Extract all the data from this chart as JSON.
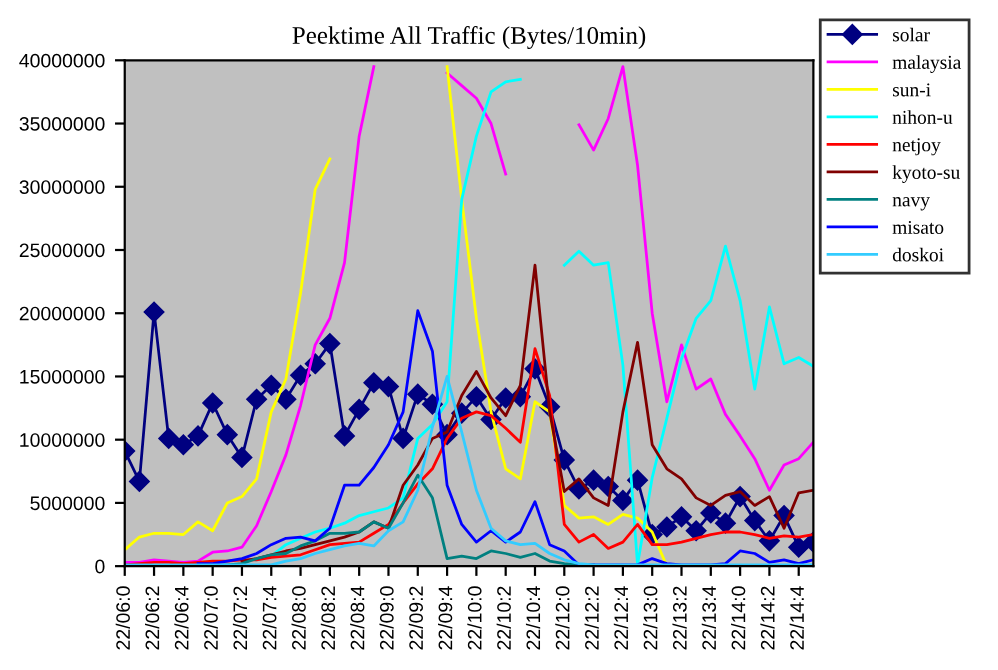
{
  "chart_data": {
    "type": "line",
    "title": "Peektime All Traffic (Bytes/10min)",
    "categories": [
      "22/06:0",
      null,
      "22/06:2",
      null,
      "22/06:4",
      null,
      "22/07:0",
      null,
      "22/07:2",
      null,
      "22/07:4",
      null,
      "22/08:0",
      null,
      "22/08:2",
      null,
      "22/08:4",
      null,
      "22/09:0",
      null,
      "22/09:2",
      null,
      "22/09:4",
      null,
      "22/10:0",
      null,
      "22/10:2",
      null,
      "22/10:4",
      null,
      "22/12:0",
      null,
      "22/12:2",
      null,
      "22/12:4",
      null,
      "22/13:0",
      null,
      "22/13:2",
      null,
      "22/13:4",
      null,
      "22/14:0",
      null,
      "22/14:2",
      null,
      "22/14:4",
      null
    ],
    "ylim": [
      0,
      40000000
    ],
    "yticks": [
      0,
      5000000,
      10000000,
      15000000,
      20000000,
      25000000,
      30000000,
      35000000,
      40000000
    ],
    "grid": false,
    "legend": "top right",
    "line_style": "solid",
    "series": [
      {
        "name": "solar",
        "color": "#000080",
        "marker": "diamond",
        "values": [
          9100000.0,
          6700000.0,
          20100000.0,
          10100000.0,
          9600000.0,
          10300000.0,
          12900000.0,
          10400000.0,
          8600000.0,
          13200000.0,
          14300000.0,
          13200000.0,
          15100000.0,
          16000000.0,
          17600000.0,
          10300000.0,
          12400000.0,
          14500000.0,
          14200000.0,
          10100000.0,
          13600000.0,
          12800000.0,
          10400000.0,
          12100000.0,
          13400000.0,
          11600000.0,
          13300000.0,
          13400000.0,
          15600000.0,
          12600000.0,
          8400000.0,
          6100000.0,
          6800000.0,
          6300000.0,
          5200000.0,
          6800000.0,
          2500000.0,
          3100000.0,
          3900000.0,
          2800000.0,
          4200000.0,
          3400000.0,
          5500000.0,
          3600000.0,
          2000000.0,
          4000000.0,
          1500000.0,
          1900000.0
        ]
      },
      {
        "name": "malaysia",
        "color": "#ff00ff",
        "values": [
          300000.0,
          300000.0,
          500000.0,
          400000.0,
          300000.0,
          400000.0,
          1100000.0,
          1200000.0,
          1500000.0,
          3200000.0,
          5900000.0,
          8800000.0,
          12700000.0,
          17500000.0,
          19600000.0,
          24000000.0,
          34000000.0,
          39500000.0,
          null,
          null,
          null,
          null,
          39000000.0,
          38000000.0,
          37000000.0,
          35000000.0,
          31000000.0,
          null,
          null,
          null,
          null,
          34900000.0,
          32900000.0,
          35400000.0,
          39500000.0,
          31700000.0,
          20000000.0,
          13000000.0,
          17500000.0,
          14000000.0,
          14800000.0,
          12000000.0,
          10300000.0,
          8500000.0,
          6000000.0,
          8000000.0,
          8500000.0,
          9800000.0
        ]
      },
      {
        "name": "sun-i",
        "color": "#ffff00",
        "values": [
          1300000.0,
          2300000.0,
          2600000.0,
          2600000.0,
          2500000.0,
          3500000.0,
          2800000.0,
          5000000.0,
          5500000.0,
          6900000.0,
          12200000.0,
          14800000.0,
          21600000.0,
          29800000.0,
          32200000.0,
          null,
          null,
          null,
          null,
          null,
          null,
          null,
          39500000.0,
          29000000.0,
          19600000.0,
          12200000.0,
          7700000.0,
          6900000.0,
          13000000.0,
          12200000.0,
          4800000.0,
          3800000.0,
          3900000.0,
          3300000.0,
          4100000.0,
          3800000.0,
          2700000.0,
          0,
          0,
          null,
          null,
          null,
          null,
          null,
          null,
          null,
          null,
          null
        ]
      },
      {
        "name": "nihon-u",
        "color": "#00ffff",
        "values": [
          null,
          null,
          null,
          null,
          null,
          null,
          null,
          null,
          null,
          500000.0,
          800000.0,
          1700000.0,
          2200000.0,
          2700000.0,
          3000000.0,
          3400000.0,
          4000000.0,
          4300000.0,
          4600000.0,
          5400000.0,
          10100000.0,
          11200000.0,
          13000000.0,
          29000000.0,
          34000000.0,
          37500000.0,
          38300000.0,
          38500000.0,
          null,
          null,
          23800000.0,
          24900000.0,
          23800000.0,
          24000000.0,
          15900000.0,
          100000.0,
          7000000.0,
          11700000.0,
          16400000.0,
          19600000.0,
          21000000.0,
          25300000.0,
          21000000.0,
          14000000.0,
          20500000.0,
          16000000.0,
          16500000.0,
          15800000.0
        ]
      },
      {
        "name": "netjoy",
        "color": "#ff0000",
        "values": [
          100000.0,
          200000.0,
          300000.0,
          300000.0,
          200000.0,
          300000.0,
          400000.0,
          400000.0,
          500000.0,
          500000.0,
          700000.0,
          800000.0,
          900000.0,
          1300000.0,
          1700000.0,
          1800000.0,
          1900000.0,
          2600000.0,
          3300000.0,
          5000000.0,
          6500000.0,
          7700000.0,
          10100000.0,
          11700000.0,
          12200000.0,
          11900000.0,
          10900000.0,
          9800000.0,
          17200000.0,
          13500000.0,
          3300000.0,
          1900000.0,
          2500000.0,
          1400000.0,
          1900000.0,
          3300000.0,
          1700000.0,
          1700000.0,
          1900000.0,
          2200000.0,
          2500000.0,
          2700000.0,
          2700000.0,
          2500000.0,
          2200000.0,
          2400000.0,
          2300000.0,
          2500000.0
        ]
      },
      {
        "name": "kyoto-su",
        "color": "#800000",
        "values": [
          null,
          null,
          null,
          null,
          null,
          null,
          null,
          null,
          400000.0,
          600000.0,
          900000.0,
          1200000.0,
          1400000.0,
          1700000.0,
          2000000.0,
          2300000.0,
          2700000.0,
          3500000.0,
          3000000.0,
          6400000.0,
          8000000.0,
          10100000.0,
          10600000.0,
          13500000.0,
          15400000.0,
          13300000.0,
          11900000.0,
          14300000.0,
          23800000.0,
          12200000.0,
          5900000.0,
          6900000.0,
          5400000.0,
          4800000.0,
          12200000.0,
          17700000.0,
          9600000.0,
          7700000.0,
          6900000.0,
          5400000.0,
          4800000.0,
          5600000.0,
          5900000.0,
          4800000.0,
          5500000.0,
          3000000.0,
          5800000.0,
          6000000.0
        ]
      },
      {
        "name": "navy",
        "color": "#008080",
        "values": [
          null,
          null,
          null,
          null,
          null,
          null,
          100000.0,
          100000.0,
          200000.0,
          600000.0,
          900000.0,
          1000000.0,
          1600000.0,
          2000000.0,
          2600000.0,
          2600000.0,
          2700000.0,
          3500000.0,
          3000000.0,
          5000000.0,
          7200000.0,
          5400000.0,
          600000.0,
          800000.0,
          600000.0,
          1200000.0,
          1000000.0,
          700000.0,
          1000000.0,
          400000.0,
          200000.0,
          100000.0,
          100000.0,
          null,
          null,
          null,
          null,
          null,
          null,
          null,
          null,
          null,
          null,
          null,
          null,
          null,
          null,
          null
        ]
      },
      {
        "name": "misato",
        "color": "#0000ff",
        "values": [
          null,
          null,
          null,
          null,
          null,
          200000.0,
          200000.0,
          400000.0,
          600000.0,
          1000000.0,
          1700000.0,
          2200000.0,
          2300000.0,
          2000000.0,
          3000000.0,
          6400000.0,
          6400000.0,
          7800000.0,
          9600000.0,
          12200000.0,
          20200000.0,
          17000000.0,
          6400000.0,
          3300000.0,
          1900000.0,
          2800000.0,
          1900000.0,
          2700000.0,
          5100000.0,
          1700000.0,
          1200000.0,
          100000.0,
          100000.0,
          100000.0,
          100000.0,
          100000.0,
          600000.0,
          200000.0,
          100000.0,
          100000.0,
          100000.0,
          200000.0,
          1200000.0,
          1000000.0,
          300000.0,
          500000.0,
          200000.0,
          500000.0
        ]
      },
      {
        "name": "doskoi",
        "color": "#33ccff",
        "values": [
          100000.0,
          100000.0,
          100000.0,
          100000.0,
          100000.0,
          100000.0,
          100000.0,
          100000.0,
          100000.0,
          100000.0,
          100000.0,
          400000.0,
          600000.0,
          1000000.0,
          1300000.0,
          1600000.0,
          1800000.0,
          1600000.0,
          2800000.0,
          3500000.0,
          6000000.0,
          11000000.0,
          15000000.0,
          10600000.0,
          6000000.0,
          3000000.0,
          2000000.0,
          1700000.0,
          1800000.0,
          1000000.0,
          500000.0,
          200000.0,
          100000.0,
          100000.0,
          100000.0,
          100000.0,
          100000.0,
          100000.0,
          100000.0,
          100000.0,
          100000.0,
          100000.0,
          100000.0,
          100000.0,
          100000.0,
          100000.0,
          100000.0,
          100000.0
        ]
      }
    ]
  }
}
